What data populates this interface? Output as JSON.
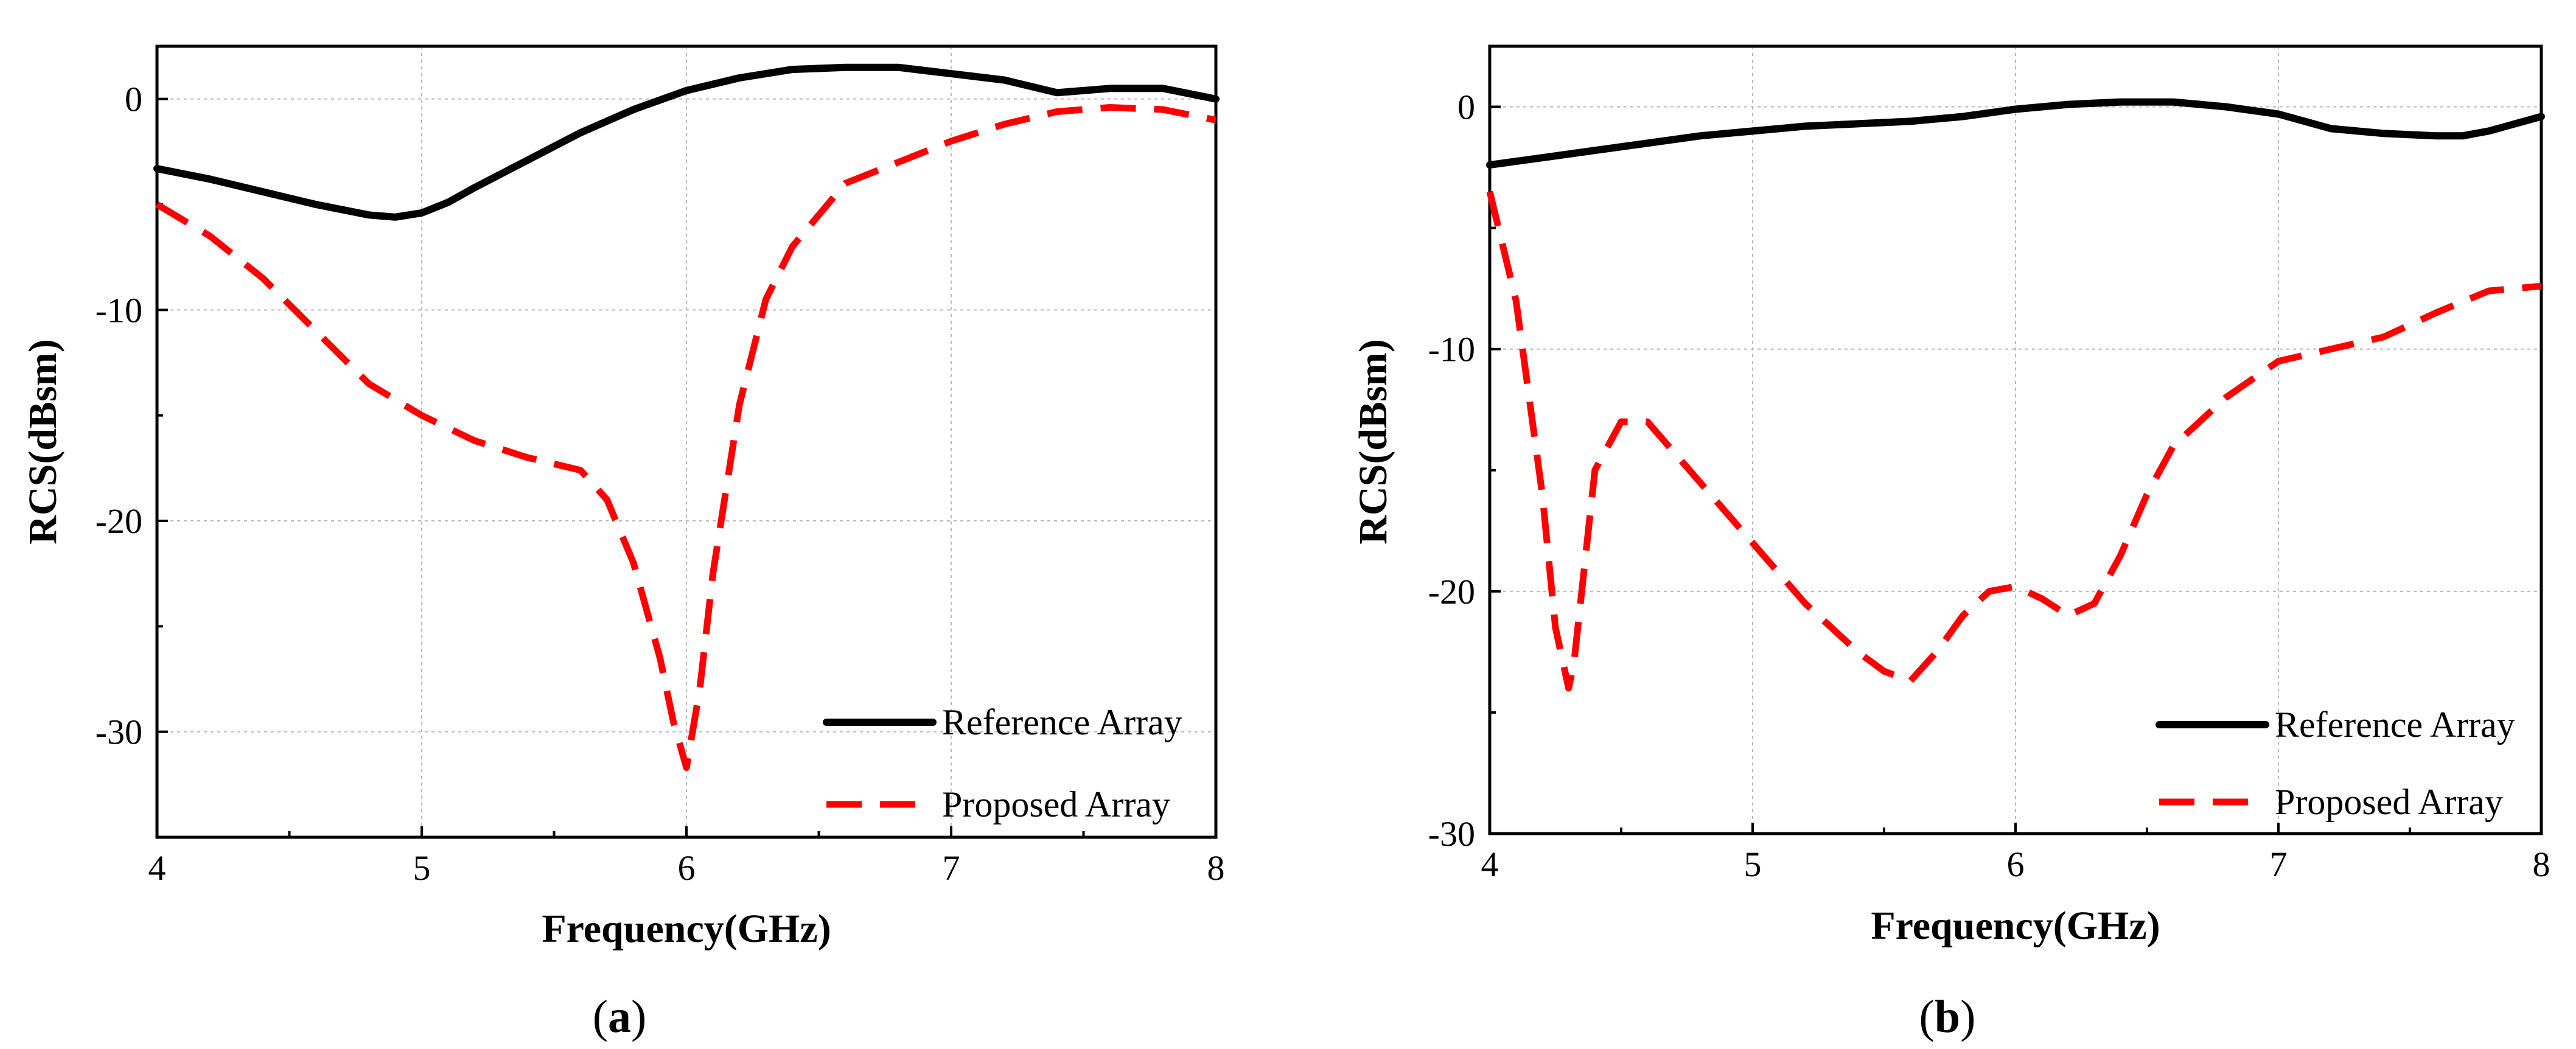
{
  "chart_data": [
    {
      "type": "line",
      "panel": "a",
      "caption": "a",
      "xlabel": "Frequency(GHz)",
      "ylabel": "RCS(dBsm)",
      "xlim": [
        4,
        8
      ],
      "ylim": [
        -35,
        2.5
      ],
      "xticks": [
        4,
        5,
        6,
        7,
        8
      ],
      "yticks": [
        0,
        -10,
        -20,
        -30
      ],
      "grid": true,
      "legend_position": "bottom-right",
      "series": [
        {
          "name": "Reference Array",
          "color": "#000000",
          "style": "solid",
          "x": [
            4.0,
            4.2,
            4.4,
            4.6,
            4.8,
            4.9,
            5.0,
            5.1,
            5.2,
            5.4,
            5.6,
            5.8,
            6.0,
            6.2,
            6.4,
            6.6,
            6.7,
            6.8,
            7.0,
            7.2,
            7.4,
            7.5,
            7.6,
            7.8,
            8.0
          ],
          "y": [
            -3.3,
            -3.8,
            -4.4,
            -5.0,
            -5.5,
            -5.6,
            -5.4,
            -4.9,
            -4.2,
            -2.9,
            -1.6,
            -0.5,
            0.4,
            1.0,
            1.4,
            1.5,
            1.5,
            1.5,
            1.2,
            0.9,
            0.3,
            0.4,
            0.5,
            0.5,
            0.0
          ]
        },
        {
          "name": "Proposed Array",
          "color": "#ff0000",
          "style": "dashed",
          "x": [
            4.0,
            4.2,
            4.4,
            4.6,
            4.8,
            5.0,
            5.2,
            5.4,
            5.6,
            5.7,
            5.8,
            5.9,
            5.95,
            6.0,
            6.05,
            6.1,
            6.2,
            6.3,
            6.4,
            6.6,
            6.8,
            7.0,
            7.2,
            7.4,
            7.6,
            7.8,
            8.0
          ],
          "y": [
            -5.0,
            -6.5,
            -8.5,
            -11.0,
            -13.5,
            -15.0,
            -16.2,
            -17.0,
            -17.6,
            -19.0,
            -22.0,
            -26.5,
            -29.5,
            -31.7,
            -28.0,
            -22.5,
            -14.5,
            -9.5,
            -7.0,
            -4.0,
            -3.0,
            -2.0,
            -1.2,
            -0.6,
            -0.4,
            -0.5,
            -1.0
          ]
        }
      ]
    },
    {
      "type": "line",
      "panel": "b",
      "caption": "b",
      "xlabel": "Frequency(GHz)",
      "ylabel": "RCS(dBsm)",
      "xlim": [
        4,
        8
      ],
      "ylim": [
        -30,
        2.5
      ],
      "xticks": [
        4,
        5,
        6,
        7,
        8
      ],
      "yticks": [
        0,
        -10,
        -20,
        -30
      ],
      "grid": true,
      "legend_position": "bottom-right",
      "series": [
        {
          "name": "Reference Array",
          "color": "#000000",
          "style": "solid",
          "x": [
            4.0,
            4.2,
            4.4,
            4.6,
            4.8,
            5.0,
            5.2,
            5.4,
            5.6,
            5.8,
            6.0,
            6.2,
            6.4,
            6.6,
            6.8,
            7.0,
            7.2,
            7.4,
            7.6,
            7.7,
            7.8,
            8.0
          ],
          "y": [
            -2.4,
            -2.1,
            -1.8,
            -1.5,
            -1.2,
            -1.0,
            -0.8,
            -0.7,
            -0.6,
            -0.4,
            -0.1,
            0.1,
            0.2,
            0.2,
            0.0,
            -0.3,
            -0.9,
            -1.1,
            -1.2,
            -1.2,
            -1.0,
            -0.4
          ]
        },
        {
          "name": "Proposed Array",
          "color": "#ff0000",
          "style": "dashed",
          "x": [
            4.0,
            4.1,
            4.2,
            4.25,
            4.3,
            4.32,
            4.35,
            4.4,
            4.5,
            4.6,
            4.8,
            5.0,
            5.2,
            5.4,
            5.5,
            5.6,
            5.7,
            5.8,
            5.9,
            6.0,
            6.1,
            6.2,
            6.3,
            6.4,
            6.5,
            6.6,
            6.8,
            7.0,
            7.2,
            7.4,
            7.6,
            7.8,
            8.0
          ],
          "y": [
            -3.5,
            -8.0,
            -16.0,
            -21.5,
            -24.0,
            -23.0,
            -20.0,
            -15.0,
            -13.0,
            -13.0,
            -15.5,
            -18.0,
            -20.5,
            -22.5,
            -23.3,
            -23.7,
            -22.5,
            -21.0,
            -20.0,
            -19.8,
            -20.3,
            -21.0,
            -20.5,
            -18.5,
            -16.0,
            -14.0,
            -12.0,
            -10.5,
            -10.0,
            -9.5,
            -8.5,
            -7.6,
            -7.4
          ]
        }
      ]
    }
  ]
}
